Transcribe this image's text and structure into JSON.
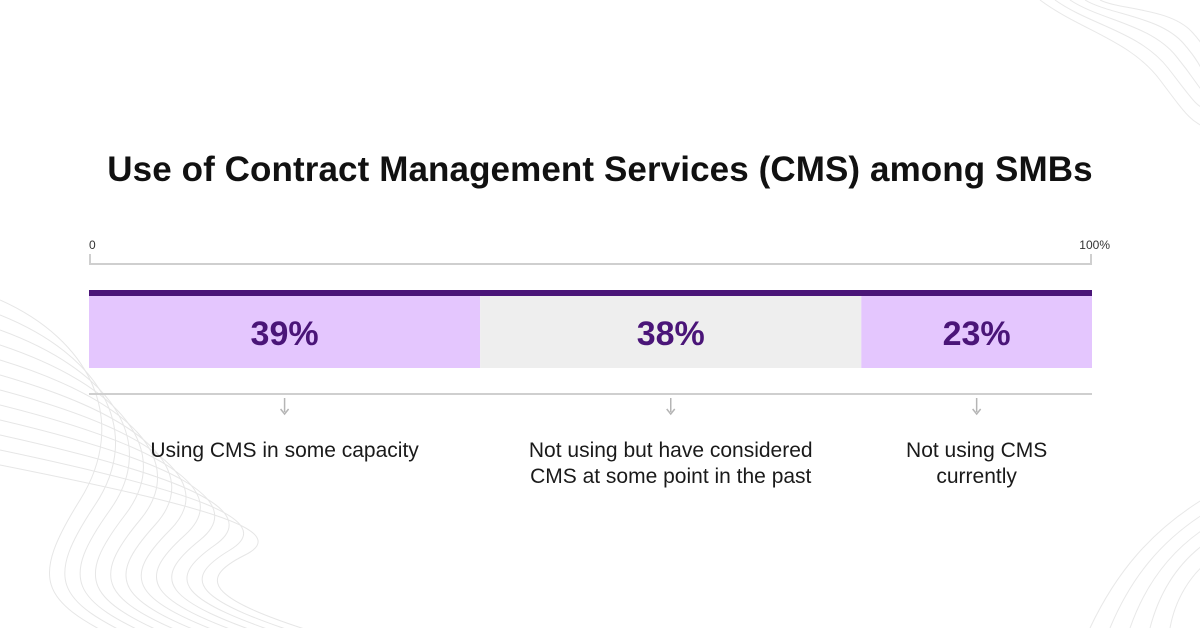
{
  "colors": {
    "accent_dark": "#4a1578",
    "segment_highlight": "#e4c6fe",
    "segment_neutral": "#eeeeee",
    "axis": "#cfcfcf",
    "value_text": "#4a1578"
  },
  "chart_data": {
    "type": "bar",
    "orientation": "horizontal-stacked",
    "title": "Use of Contract Management Services (CMS) among SMBs",
    "xlim": [
      0,
      100
    ],
    "tick_labels": [
      "0",
      "100%"
    ],
    "categories": [
      "Using CMS in some capacity",
      "Not using but have considered\nCMS at some point in the past",
      "Not using CMS\ncurrently"
    ],
    "values": [
      39,
      38,
      23
    ],
    "value_labels": [
      "39%",
      "38%",
      "23%"
    ],
    "legend": "none",
    "grid": false
  }
}
